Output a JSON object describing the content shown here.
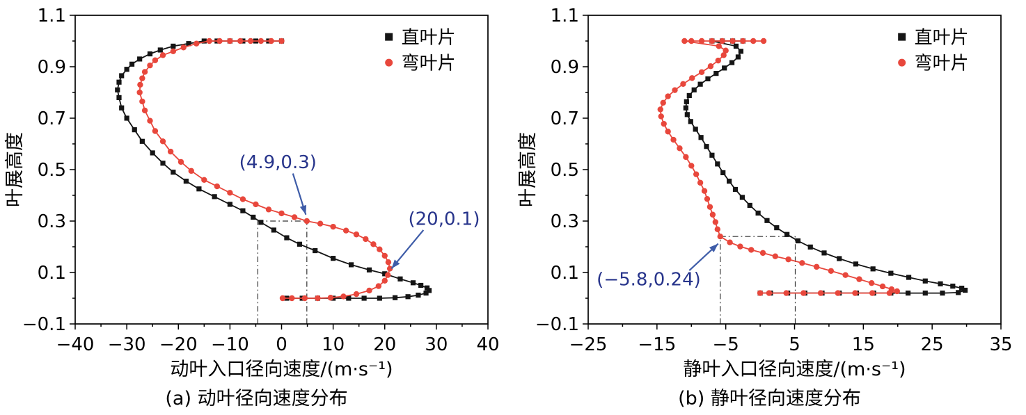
{
  "page": {
    "background": "#ffffff"
  },
  "chart_data": [
    {
      "type": "line",
      "caption": "(a) 动叶径向速度分布",
      "xlabel": "动叶入口径向速度/(m·s⁻¹)",
      "ylabel": "叶展高度",
      "xlim": [
        -40,
        40
      ],
      "ylim": [
        -0.1,
        1.1
      ],
      "xticks": [
        -40,
        -30,
        -20,
        -10,
        0,
        10,
        20,
        30,
        40
      ],
      "yticks": [
        -0.1,
        0.1,
        0.3,
        0.5,
        0.7,
        0.9,
        1.1
      ],
      "xminor": 5,
      "yminor": 0.1,
      "grid": false,
      "legend": {
        "x": 0.76,
        "y": 0.07,
        "position": "top-right"
      },
      "colors": {
        "annotation": "#27348b",
        "arrow": "#3e5ca8",
        "guide": "#333333"
      },
      "series": [
        {
          "name": "直叶片",
          "marker": "square",
          "color": "#151515",
          "points": [
            [
              0,
              1.0
            ],
            [
              -2.5,
              1.0
            ],
            [
              -5,
              1.0
            ],
            [
              -7.5,
              1.0
            ],
            [
              -10,
              1.0
            ],
            [
              -12.5,
              1.0
            ],
            [
              -15,
              1.0
            ],
            [
              -18,
              0.99
            ],
            [
              -21,
              0.98
            ],
            [
              -23.5,
              0.965
            ],
            [
              -25.5,
              0.95
            ],
            [
              -27.5,
              0.93
            ],
            [
              -29,
              0.91
            ],
            [
              -30,
              0.89
            ],
            [
              -31,
              0.865
            ],
            [
              -31.5,
              0.84
            ],
            [
              -31.8,
              0.81
            ],
            [
              -31.5,
              0.78
            ],
            [
              -31,
              0.74
            ],
            [
              -30,
              0.7
            ],
            [
              -28.5,
              0.655
            ],
            [
              -27,
              0.61
            ],
            [
              -25,
              0.565
            ],
            [
              -23,
              0.525
            ],
            [
              -21,
              0.49
            ],
            [
              -18.5,
              0.455
            ],
            [
              -16,
              0.425
            ],
            [
              -13,
              0.395
            ],
            [
              -10,
              0.365
            ],
            [
              -7.5,
              0.34
            ],
            [
              -5.5,
              0.315
            ],
            [
              -4,
              0.295
            ],
            [
              -1.5,
              0.265
            ],
            [
              1,
              0.235
            ],
            [
              3.5,
              0.21
            ],
            [
              6.5,
              0.185
            ],
            [
              10,
              0.155
            ],
            [
              13.5,
              0.13
            ],
            [
              17,
              0.11
            ],
            [
              20,
              0.095
            ],
            [
              23,
              0.075
            ],
            [
              25.5,
              0.06
            ],
            [
              27,
              0.05
            ],
            [
              28.2,
              0.04
            ],
            [
              28.6,
              0.03
            ],
            [
              28,
              0.02
            ],
            [
              26.5,
              0.012
            ],
            [
              24.5,
              0.006
            ],
            [
              22,
              0.002
            ],
            [
              19,
              0
            ],
            [
              16,
              0
            ],
            [
              13,
              0
            ],
            [
              10,
              0
            ],
            [
              7,
              0
            ],
            [
              4,
              0
            ],
            [
              1,
              0
            ]
          ]
        },
        {
          "name": "弯叶片",
          "marker": "circle",
          "color": "#e8473c",
          "points": [
            [
              0,
              1.0
            ],
            [
              -2,
              1.0
            ],
            [
              -4,
              1.0
            ],
            [
              -6,
              1.0
            ],
            [
              -8,
              1.0
            ],
            [
              -10,
              1.0
            ],
            [
              -12,
              1.0
            ],
            [
              -14,
              1.0
            ],
            [
              -16.5,
              0.99
            ],
            [
              -19,
              0.975
            ],
            [
              -21,
              0.96
            ],
            [
              -23,
              0.945
            ],
            [
              -24.5,
              0.925
            ],
            [
              -25.5,
              0.905
            ],
            [
              -26.5,
              0.88
            ],
            [
              -27,
              0.855
            ],
            [
              -27.4,
              0.83
            ],
            [
              -27.5,
              0.8
            ],
            [
              -27,
              0.765
            ],
            [
              -26.5,
              0.73
            ],
            [
              -25.5,
              0.69
            ],
            [
              -24.5,
              0.65
            ],
            [
              -23,
              0.61
            ],
            [
              -21.5,
              0.57
            ],
            [
              -19.5,
              0.53
            ],
            [
              -17.5,
              0.495
            ],
            [
              -15,
              0.46
            ],
            [
              -12.5,
              0.435
            ],
            [
              -10,
              0.41
            ],
            [
              -7.5,
              0.385
            ],
            [
              -5,
              0.365
            ],
            [
              -2.5,
              0.345
            ],
            [
              0,
              0.33
            ],
            [
              2.5,
              0.315
            ],
            [
              4.9,
              0.3
            ],
            [
              7.5,
              0.29
            ],
            [
              10,
              0.278
            ],
            [
              12.5,
              0.263
            ],
            [
              14.5,
              0.248
            ],
            [
              16.3,
              0.23
            ],
            [
              17.8,
              0.21
            ],
            [
              19,
              0.19
            ],
            [
              20,
              0.165
            ],
            [
              20.7,
              0.14
            ],
            [
              21,
              0.115
            ],
            [
              20.6,
              0.09
            ],
            [
              20,
              0.068
            ],
            [
              18.8,
              0.047
            ],
            [
              17,
              0.03
            ],
            [
              14.5,
              0.016
            ],
            [
              12,
              0.007
            ],
            [
              9.5,
              0.002
            ],
            [
              7,
              0
            ],
            [
              4.5,
              0
            ],
            [
              2,
              0
            ],
            [
              0.2,
              0
            ]
          ]
        }
      ],
      "guides": [
        {
          "x1": -4.6,
          "y1": 0.3,
          "x2": 4.9,
          "y2": 0.3
        },
        {
          "x1": -4.6,
          "y1": -0.1,
          "x2": -4.6,
          "y2": 0.3
        },
        {
          "x1": 4.9,
          "y1": -0.1,
          "x2": 4.9,
          "y2": 0.3
        }
      ],
      "annotations": [
        {
          "text": "(4.9,0.3)",
          "tx": -0.7,
          "ty": 0.53,
          "ax": 2.2,
          "ay": 0.485,
          "bx": 4.7,
          "by": 0.325
        },
        {
          "text": "(20,0.1)",
          "tx": 31.5,
          "ty": 0.31,
          "ax": 27.5,
          "ay": 0.265,
          "bx": 21.3,
          "by": 0.115
        }
      ]
    },
    {
      "type": "line",
      "caption": "(b) 静叶径向速度分布",
      "xlabel": "静叶入口径向速度/(m·s⁻¹)",
      "ylabel": "叶展高度",
      "xlim": [
        -25,
        35
      ],
      "ylim": [
        -0.1,
        1.1
      ],
      "xticks": [
        -25,
        -15,
        -5,
        5,
        15,
        25,
        35
      ],
      "yticks": [
        -0.1,
        0.1,
        0.3,
        0.5,
        0.7,
        0.9,
        1.1
      ],
      "xminor": 5,
      "yminor": 0.1,
      "grid": false,
      "legend": {
        "x": 0.76,
        "y": 0.07,
        "position": "top-right"
      },
      "colors": {
        "annotation": "#27348b",
        "arrow": "#3e5ca8",
        "guide": "#333333"
      },
      "series": [
        {
          "name": "直叶片",
          "marker": "square",
          "color": "#151515",
          "points": [
            [
              -2.5,
              1.0
            ],
            [
              -4,
              1.0
            ],
            [
              -5.5,
              1.0
            ],
            [
              -7,
              1.0
            ],
            [
              -3.5,
              0.98
            ],
            [
              -2.8,
              0.96
            ],
            [
              -3.2,
              0.938
            ],
            [
              -4.1,
              0.916
            ],
            [
              -5.2,
              0.895
            ],
            [
              -6.4,
              0.874
            ],
            [
              -7.6,
              0.853
            ],
            [
              -8.7,
              0.832
            ],
            [
              -9.6,
              0.81
            ],
            [
              -10.3,
              0.788
            ],
            [
              -10.7,
              0.764
            ],
            [
              -10.8,
              0.74
            ],
            [
              -10.6,
              0.714
            ],
            [
              -10.1,
              0.687
            ],
            [
              -9.4,
              0.657
            ],
            [
              -8.6,
              0.625
            ],
            [
              -7.8,
              0.59
            ],
            [
              -7,
              0.556
            ],
            [
              -6.2,
              0.522
            ],
            [
              -5.4,
              0.488
            ],
            [
              -4.5,
              0.455
            ],
            [
              -3.6,
              0.423
            ],
            [
              -2.6,
              0.392
            ],
            [
              -1.5,
              0.361
            ],
            [
              -0.3,
              0.331
            ],
            [
              1,
              0.302
            ],
            [
              2.4,
              0.274
            ],
            [
              3.9,
              0.248
            ],
            [
              5.5,
              0.223
            ],
            [
              7.3,
              0.199
            ],
            [
              9.3,
              0.176
            ],
            [
              11.5,
              0.154
            ],
            [
              13.9,
              0.133
            ],
            [
              16.4,
              0.114
            ],
            [
              19,
              0.097
            ],
            [
              21.6,
              0.081
            ],
            [
              24,
              0.067
            ],
            [
              26.2,
              0.056
            ],
            [
              28,
              0.047
            ],
            [
              29.3,
              0.039
            ],
            [
              29.8,
              0.031
            ],
            [
              28.8,
              0.022
            ],
            [
              26.5,
              0.02
            ],
            [
              24,
              0.02
            ],
            [
              21.5,
              0.02
            ],
            [
              19,
              0.02
            ],
            [
              16.5,
              0.02
            ],
            [
              14,
              0.02
            ],
            [
              11.5,
              0.02
            ],
            [
              9,
              0.02
            ],
            [
              6.5,
              0.02
            ],
            [
              4,
              0.02
            ],
            [
              1.5,
              0.02
            ],
            [
              0,
              0.02
            ]
          ]
        },
        {
          "name": "弯叶片",
          "marker": "circle",
          "color": "#e8473c",
          "points": [
            [
              0.5,
              1.0
            ],
            [
              -1,
              1.0
            ],
            [
              -2.5,
              1.0
            ],
            [
              -4,
              1.0
            ],
            [
              -5.5,
              1.0
            ],
            [
              -7,
              1.0
            ],
            [
              -8.5,
              1.0
            ],
            [
              -10,
              1.0
            ],
            [
              -11,
              1.0
            ],
            [
              -6,
              0.98
            ],
            [
              -5,
              0.963
            ],
            [
              -5.3,
              0.945
            ],
            [
              -6.1,
              0.924
            ],
            [
              -7.2,
              0.902
            ],
            [
              -8.5,
              0.879
            ],
            [
              -9.9,
              0.856
            ],
            [
              -11.2,
              0.833
            ],
            [
              -12.4,
              0.809
            ],
            [
              -13.4,
              0.785
            ],
            [
              -14.1,
              0.76
            ],
            [
              -14.5,
              0.734
            ],
            [
              -14.4,
              0.707
            ],
            [
              -14,
              0.678
            ],
            [
              -13.4,
              0.648
            ],
            [
              -12.6,
              0.616
            ],
            [
              -11.7,
              0.583
            ],
            [
              -10.8,
              0.549
            ],
            [
              -10,
              0.515
            ],
            [
              -9.3,
              0.482
            ],
            [
              -8.7,
              0.449
            ],
            [
              -8.1,
              0.417
            ],
            [
              -7.7,
              0.386
            ],
            [
              -7.3,
              0.355
            ],
            [
              -6.9,
              0.325
            ],
            [
              -6.5,
              0.296
            ],
            [
              -6.2,
              0.268
            ],
            [
              -5.8,
              0.24
            ],
            [
              -4.4,
              0.217
            ],
            [
              -2.9,
              0.201
            ],
            [
              -1.3,
              0.188
            ],
            [
              0.4,
              0.176
            ],
            [
              2.2,
              0.163
            ],
            [
              4.1,
              0.151
            ],
            [
              6.1,
              0.137
            ],
            [
              8.2,
              0.122
            ],
            [
              10.3,
              0.106
            ],
            [
              12.4,
              0.09
            ],
            [
              14.4,
              0.074
            ],
            [
              16.2,
              0.059
            ],
            [
              17.8,
              0.046
            ],
            [
              19.1,
              0.035
            ],
            [
              19.9,
              0.027
            ],
            [
              18.8,
              0.02
            ],
            [
              16.3,
              0.02
            ],
            [
              13.8,
              0.02
            ],
            [
              11.3,
              0.02
            ],
            [
              8.8,
              0.02
            ],
            [
              6.3,
              0.02
            ],
            [
              3.8,
              0.02
            ],
            [
              1.3,
              0.02
            ],
            [
              0,
              0.02
            ]
          ]
        }
      ],
      "guides": [
        {
          "x1": -5.8,
          "y1": 0.24,
          "x2": 5.1,
          "y2": 0.24
        },
        {
          "x1": -5.8,
          "y1": -0.1,
          "x2": -5.8,
          "y2": 0.24
        },
        {
          "x1": 5.1,
          "y1": -0.1,
          "x2": 5.1,
          "y2": 0.24
        }
      ],
      "annotations": [
        {
          "text": "(−5.8,0.24)",
          "tx": -16.2,
          "ty": 0.075,
          "ax": -10.3,
          "ay": 0.108,
          "bx": -6.1,
          "by": 0.212
        }
      ]
    }
  ]
}
